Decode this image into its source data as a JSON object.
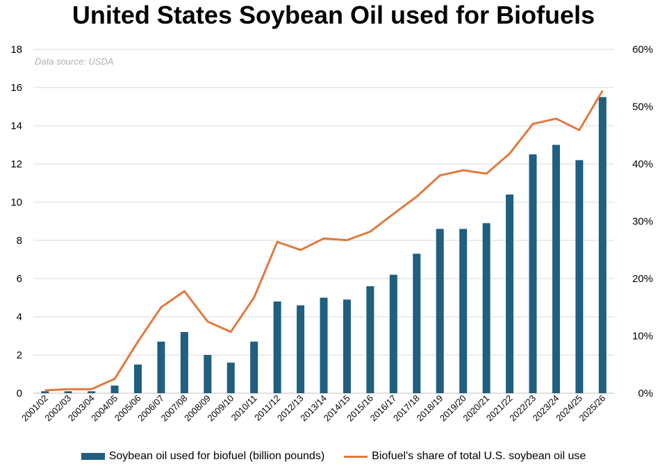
{
  "chart_data": {
    "type": "bar+line",
    "title": "United States Soybean Oil used for Biofuels",
    "annotation": "Data source: USDA",
    "categories": [
      "2001/02",
      "2002/03",
      "2003/04",
      "2004/05",
      "2005/06",
      "2006/07",
      "2007/08",
      "2008/09",
      "2009/10",
      "2010/11",
      "2011/12",
      "2012/13",
      "2013/14",
      "2014/15",
      "2015/16",
      "2016/17",
      "2017/18",
      "2018/19",
      "2019/20",
      "2020/21",
      "2021/22",
      "2022/23",
      "2023/24",
      "2024/25",
      "2025/26"
    ],
    "series": [
      {
        "name": "Soybean oil used for biofuel (billion pounds)",
        "type": "bar",
        "axis": "left",
        "color": "#1f5f80",
        "values": [
          0.1,
          0.1,
          0.1,
          0.4,
          1.5,
          2.7,
          3.2,
          2.0,
          1.6,
          2.7,
          4.8,
          4.6,
          5.0,
          4.9,
          5.6,
          6.2,
          7.3,
          8.6,
          8.6,
          8.9,
          10.4,
          12.5,
          13.0,
          12.2,
          15.5
        ]
      },
      {
        "name": "Biofuel's share of total U.S. soybean oil use",
        "type": "line",
        "axis": "right",
        "color": "#e2783d",
        "values": [
          0.5,
          0.7,
          0.7,
          2.5,
          9.0,
          15.0,
          17.8,
          12.5,
          10.7,
          16.7,
          26.4,
          25.0,
          27.0,
          26.7,
          28.2,
          31.3,
          34.3,
          38.0,
          38.9,
          38.3,
          41.8,
          47.0,
          47.9,
          45.9,
          52.8
        ]
      }
    ],
    "y_left": {
      "min": 0,
      "max": 18,
      "ticks": [
        "0",
        "2",
        "4",
        "6",
        "8",
        "10",
        "12",
        "14",
        "16",
        "18"
      ],
      "tick_values": [
        0,
        2,
        4,
        6,
        8,
        10,
        12,
        14,
        16,
        18
      ]
    },
    "y_right": {
      "min": 0,
      "max": 60,
      "ticks": [
        "0%",
        "10%",
        "20%",
        "30%",
        "40%",
        "50%",
        "60%"
      ],
      "tick_values": [
        0,
        10,
        20,
        30,
        40,
        50,
        60
      ]
    },
    "grid": true,
    "legend": "bottom"
  }
}
